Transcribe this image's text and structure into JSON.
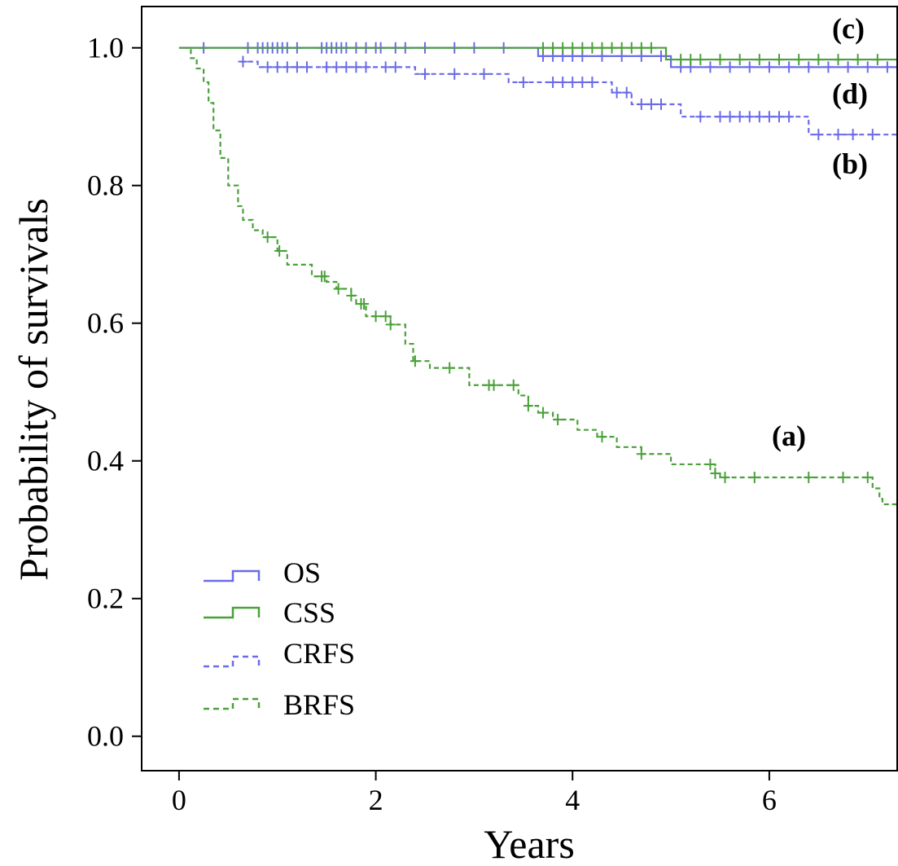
{
  "chart_data": {
    "type": "line",
    "title": "",
    "xlabel": "Years",
    "ylabel": "Probability of survivals",
    "xlim": [
      -0.38,
      7.3
    ],
    "ylim": [
      -0.05,
      1.06
    ],
    "xticks": [
      0,
      2,
      4,
      6
    ],
    "xtick_labels": [
      "0",
      "2",
      "4",
      "6"
    ],
    "yticks": [
      0.0,
      0.2,
      0.4,
      0.6,
      0.8,
      1.0
    ],
    "ytick_labels": [
      "0.0",
      "0.2",
      "0.4",
      "0.6",
      "0.8",
      "1.0"
    ],
    "grid": false,
    "legend_position": "bottom-left",
    "series": [
      {
        "name": "OS",
        "label": "(c)",
        "color": "#6B6BE8",
        "dashed": false,
        "steps": [
          [
            0,
            1.0
          ],
          [
            3.65,
            0.988
          ],
          [
            5.0,
            0.972
          ],
          [
            7.3,
            0.972
          ]
        ],
        "censors": [
          0.25,
          0.7,
          0.8,
          0.85,
          0.9,
          0.95,
          1.0,
          1.05,
          1.1,
          1.2,
          1.45,
          1.5,
          1.55,
          1.6,
          1.65,
          1.7,
          1.8,
          1.9,
          2.0,
          2.05,
          2.2,
          2.3,
          2.5,
          2.8,
          3.0,
          3.3,
          3.7,
          3.8,
          3.9,
          4.0,
          4.1,
          4.3,
          4.5,
          4.7,
          4.9,
          5.1,
          5.2,
          5.4,
          5.6,
          5.8,
          6.0,
          6.2,
          6.4,
          6.6,
          6.8,
          7.0,
          7.2
        ]
      },
      {
        "name": "CSS",
        "label": "(d)",
        "color": "#4AA03A",
        "dashed": false,
        "steps": [
          [
            0,
            1.0
          ],
          [
            4.95,
            0.983
          ],
          [
            7.3,
            0.983
          ]
        ],
        "censors": [
          3.7,
          3.8,
          3.9,
          4.0,
          4.1,
          4.2,
          4.3,
          4.4,
          4.5,
          4.6,
          4.7,
          4.8,
          5.1,
          5.2,
          5.3,
          5.5,
          5.7,
          5.9,
          6.1,
          6.3,
          6.5,
          6.7,
          6.9,
          7.1
        ]
      },
      {
        "name": "CRFS",
        "label": "(b)",
        "color": "#6B6BE8",
        "dashed": true,
        "steps": [
          [
            0.62,
            0.98
          ],
          [
            0.8,
            0.972
          ],
          [
            2.4,
            0.962
          ],
          [
            3.35,
            0.95
          ],
          [
            4.4,
            0.935
          ],
          [
            4.6,
            0.918
          ],
          [
            5.1,
            0.9
          ],
          [
            6.4,
            0.874
          ],
          [
            7.3,
            0.874
          ]
        ],
        "censors": [
          0.65,
          0.9,
          1.0,
          1.1,
          1.2,
          1.3,
          1.5,
          1.6,
          1.7,
          1.8,
          1.9,
          2.1,
          2.2,
          2.5,
          2.8,
          3.1,
          3.5,
          3.8,
          3.9,
          4.0,
          4.1,
          4.2,
          4.45,
          4.55,
          4.7,
          4.8,
          4.9,
          5.3,
          5.5,
          5.6,
          5.7,
          5.8,
          5.9,
          6.0,
          6.1,
          6.2,
          6.5,
          6.7,
          6.85,
          7.05
        ]
      },
      {
        "name": "BRFS",
        "label": "(a)",
        "color": "#4AA03A",
        "dashed": true,
        "steps": [
          [
            0.05,
            1.0
          ],
          [
            0.12,
            0.985
          ],
          [
            0.18,
            0.97
          ],
          [
            0.25,
            0.95
          ],
          [
            0.3,
            0.92
          ],
          [
            0.35,
            0.88
          ],
          [
            0.42,
            0.84
          ],
          [
            0.5,
            0.8
          ],
          [
            0.6,
            0.77
          ],
          [
            0.65,
            0.75
          ],
          [
            0.75,
            0.735
          ],
          [
            0.85,
            0.725
          ],
          [
            1.0,
            0.705
          ],
          [
            1.1,
            0.685
          ],
          [
            1.35,
            0.668
          ],
          [
            1.5,
            0.66
          ],
          [
            1.6,
            0.65
          ],
          [
            1.75,
            0.64
          ],
          [
            1.8,
            0.628
          ],
          [
            1.9,
            0.61
          ],
          [
            2.15,
            0.598
          ],
          [
            2.3,
            0.57
          ],
          [
            2.38,
            0.545
          ],
          [
            2.55,
            0.535
          ],
          [
            2.95,
            0.51
          ],
          [
            3.45,
            0.495
          ],
          [
            3.55,
            0.48
          ],
          [
            3.65,
            0.47
          ],
          [
            3.8,
            0.46
          ],
          [
            4.05,
            0.445
          ],
          [
            4.25,
            0.435
          ],
          [
            4.45,
            0.42
          ],
          [
            4.7,
            0.41
          ],
          [
            5.0,
            0.395
          ],
          [
            5.45,
            0.382
          ],
          [
            5.5,
            0.376
          ],
          [
            7.05,
            0.36
          ],
          [
            7.12,
            0.345
          ],
          [
            7.15,
            0.337
          ],
          [
            7.3,
            0.337
          ]
        ],
        "censors": [
          0.9,
          1.02,
          1.45,
          1.48,
          1.62,
          1.75,
          1.85,
          1.88,
          2.0,
          2.1,
          2.15,
          2.4,
          2.75,
          3.15,
          3.2,
          3.4,
          3.55,
          3.7,
          3.85,
          4.3,
          4.7,
          5.4,
          5.45,
          5.55,
          5.85,
          6.4,
          6.75,
          7.0
        ]
      }
    ]
  }
}
